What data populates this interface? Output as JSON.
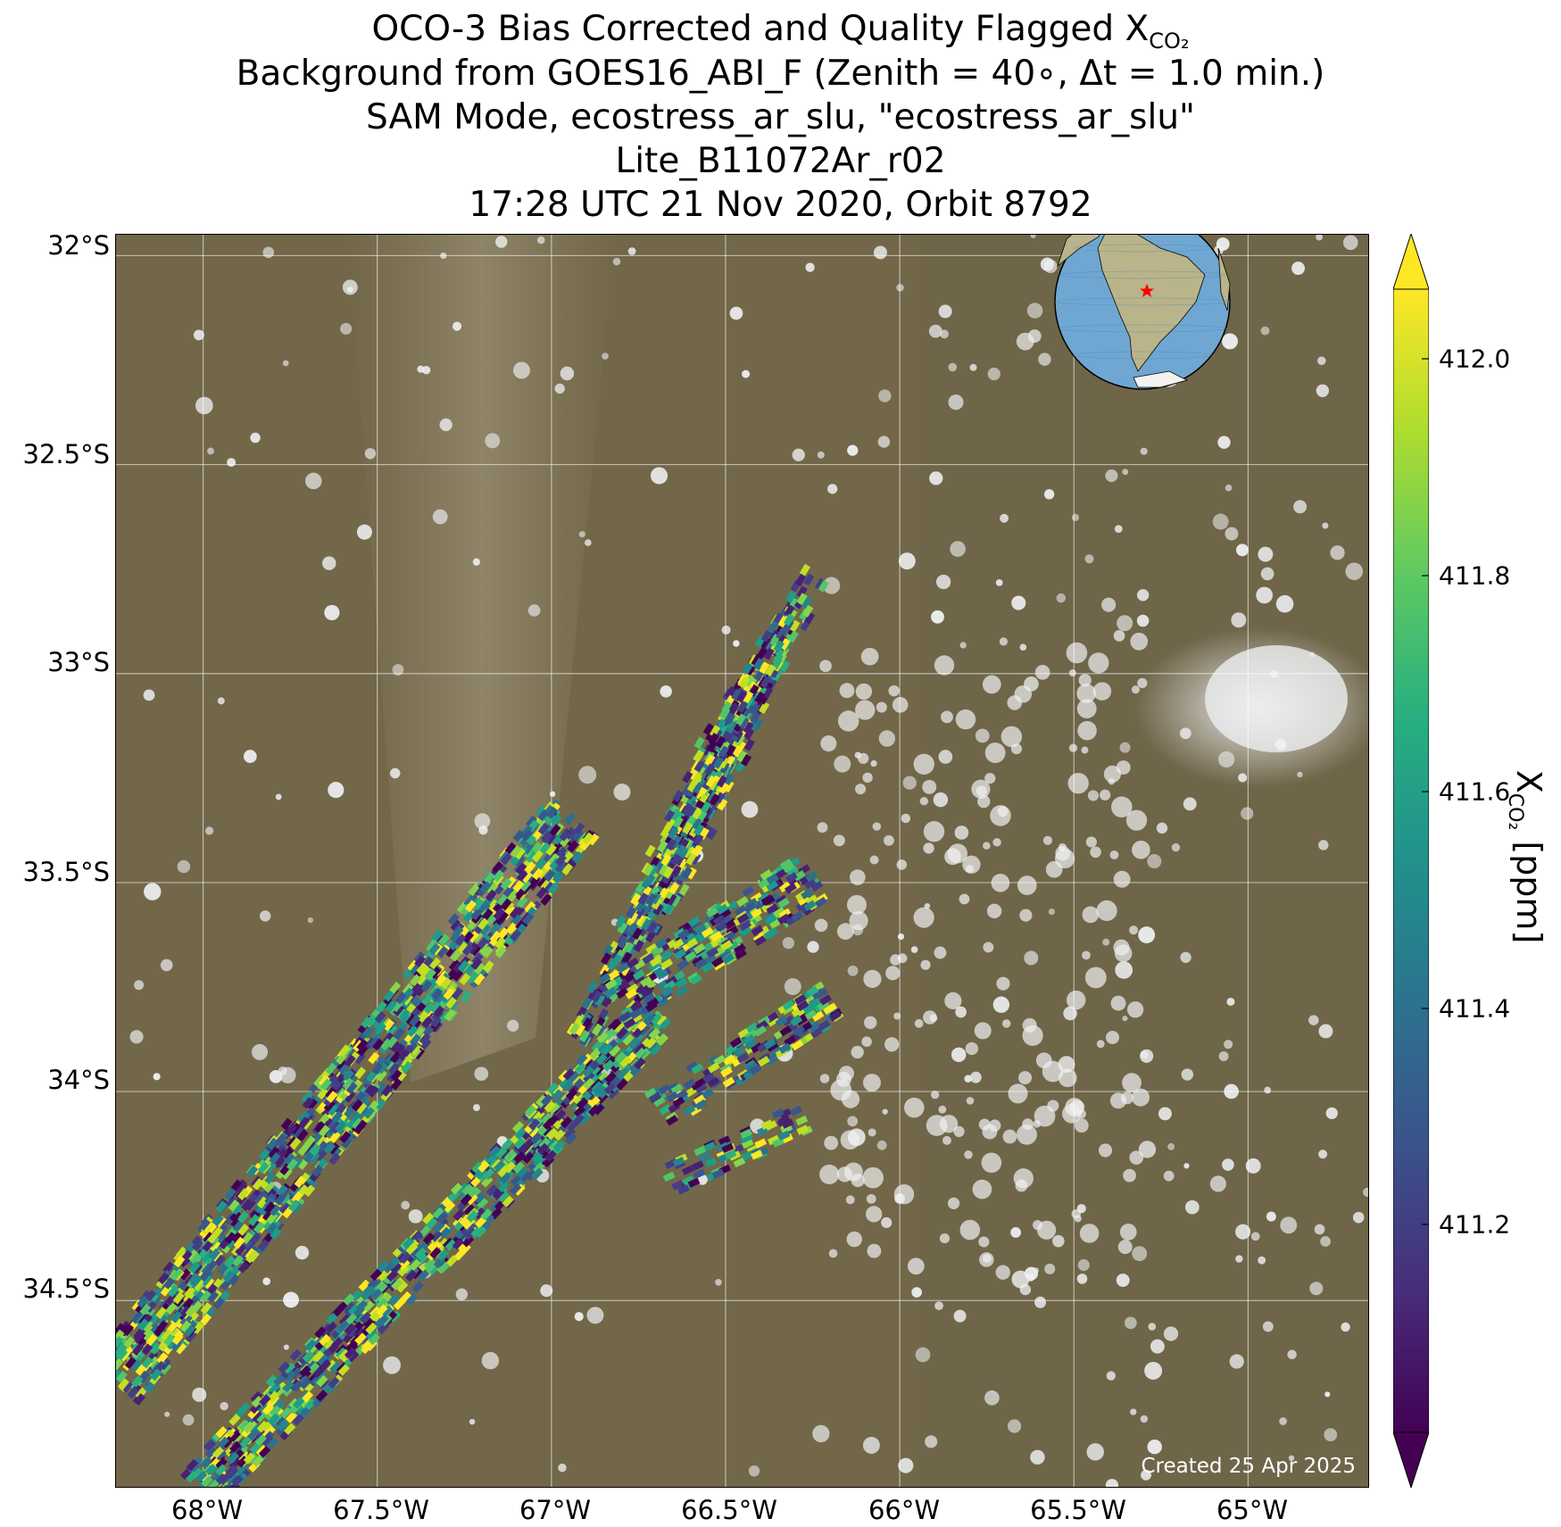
{
  "title": {
    "line1_main": "OCO-3 Bias Corrected and Quality Flagged X",
    "line1_sub": "CO₂",
    "line2": "Background from GOES16_ABI_F (Zenith = 40∘, Δt =  1.0 min.)",
    "line3": "SAM Mode, ecostress_ar_slu, \"ecostress_ar_slu\"",
    "line4": "Lite_B11072Ar_r02",
    "line5": "17:28 UTC 21 Nov 2020, Orbit 8792"
  },
  "map": {
    "lat_labels": [
      "32°S",
      "32.5°S",
      "33°S",
      "33.5°S",
      "34°S",
      "34.5°S"
    ],
    "lon_labels": [
      "68°W",
      "67.5°W",
      "67°W",
      "66.5°W",
      "66°W",
      "65.5°W",
      "65°W"
    ],
    "lat_range": [
      -34.95,
      -31.95
    ],
    "lon_range": [
      -68.25,
      -64.65
    ],
    "target_marker": "red-star",
    "credit": "Created 25 Apr 2025"
  },
  "colorbar": {
    "colormap": "viridis",
    "label_main": "X",
    "label_sub": "CO₂",
    "label_unit": " [ppm]",
    "ticks": [
      "411.2",
      "411.4",
      "411.6",
      "411.8",
      "412.0"
    ],
    "range": [
      411.02,
      412.08
    ],
    "extend": "both"
  },
  "colors": {
    "land": "#6f6548",
    "cloud": "#e6e8ea",
    "marker": "#ff0000",
    "gridline": "#ffffff"
  }
}
